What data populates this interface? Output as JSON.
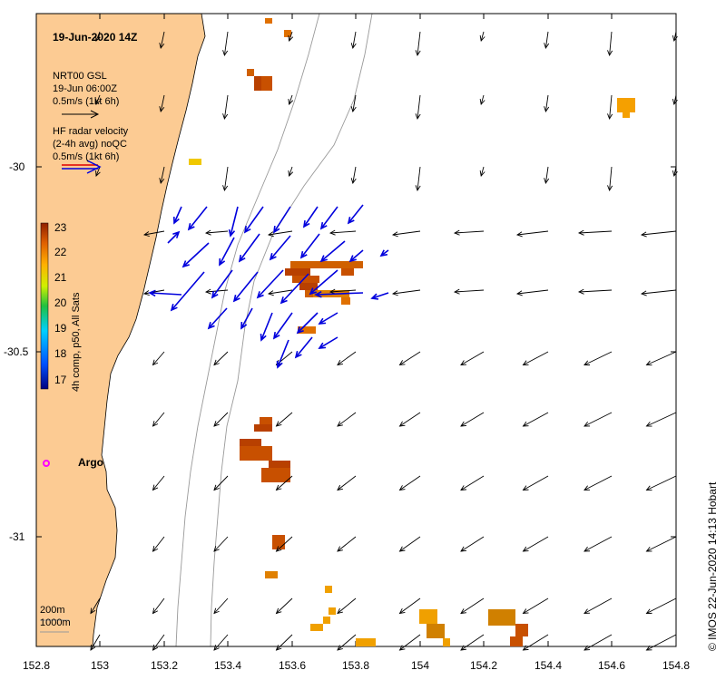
{
  "title": "19-Jun-2020 14Z",
  "legend": {
    "model_line1": "NRT00 GSL",
    "model_line2": "19-Jun 06:00Z",
    "model_line3": "0.5m/s (1kt 6h)",
    "radar_line1": "HF radar velocity",
    "radar_line2": "(2-4h avg) noQC",
    "radar_line3": "0.5m/s (1kt 6h)"
  },
  "colorbar": {
    "label": "4h comp, p50, All Sats",
    "ticks": [
      "23",
      "22",
      "21",
      "20",
      "19",
      "18",
      "17"
    ]
  },
  "depth_legend": {
    "line1": "200m",
    "line2": "1000m"
  },
  "argo_label": "Argo",
  "credit": "© IMOS 22-Jun-2020 14:13 Hobart",
  "x_ticks": [
    "152.8",
    "153",
    "153.2",
    "153.4",
    "153.6",
    "153.8",
    "154",
    "154.2",
    "154.4",
    "154.6",
    "154.8"
  ],
  "y_ticks": [
    "-30",
    "-30.5",
    "-31"
  ],
  "colors": {
    "land": "#fccb93",
    "radar_arrow": "#0000dd",
    "model_arrow": "#000000",
    "argo": "#ff00ff"
  }
}
